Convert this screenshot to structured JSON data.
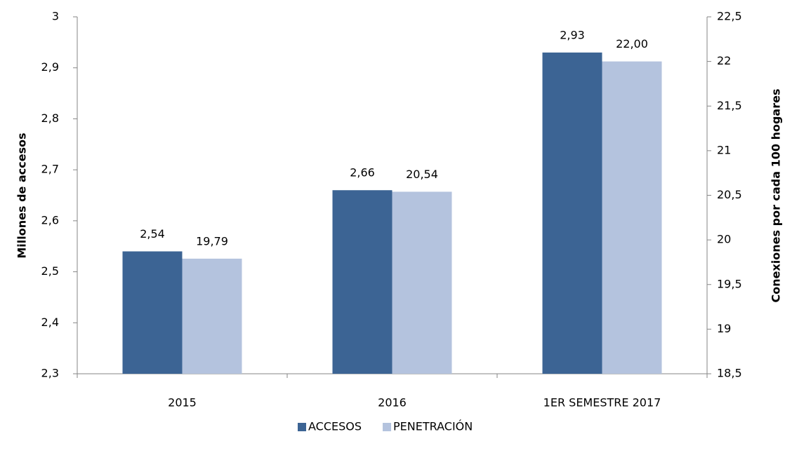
{
  "chart_data": {
    "type": "bar",
    "categories": [
      "2015",
      "2016",
      "1ER SEMESTRE 2017"
    ],
    "ylabel": "Millones de accesos",
    "y2label": "Conexiones por cada 100 hogares",
    "ylim": [
      2.3,
      3
    ],
    "yticks": [
      {
        "value": 2.3,
        "label": "2,3"
      },
      {
        "value": 2.4,
        "label": "2,4"
      },
      {
        "value": 2.5,
        "label": "2,5"
      },
      {
        "value": 2.6,
        "label": "2,6"
      },
      {
        "value": 2.7,
        "label": "2,7"
      },
      {
        "value": 2.8,
        "label": "2,8"
      },
      {
        "value": 2.9,
        "label": "2,9"
      },
      3
    ],
    "y2lim": [
      18.5,
      22.5
    ],
    "y2ticks": [
      {
        "value": 18.5,
        "label": "18,5"
      },
      19,
      {
        "value": 19.5,
        "label": "19,5"
      },
      20,
      {
        "value": 20.5,
        "label": "20,5"
      },
      21,
      {
        "value": 21.5,
        "label": "21,5"
      },
      22,
      {
        "value": 22.5,
        "label": "22,5"
      }
    ],
    "series": [
      {
        "name": "ACCESOS",
        "color": "#3c6494",
        "values": [
          2.54,
          2.66,
          2.93
        ],
        "value_labels": [
          "2,54",
          "2,66",
          "2,93"
        ]
      },
      {
        "name": "PENETRACIÓN",
        "color": "#b4c3de",
        "axis": "y2",
        "values": [
          19.79,
          20.54,
          22.0
        ],
        "value_labels": [
          "19,79",
          "20,54",
          "22,00"
        ]
      }
    ],
    "legend": "bottom"
  }
}
